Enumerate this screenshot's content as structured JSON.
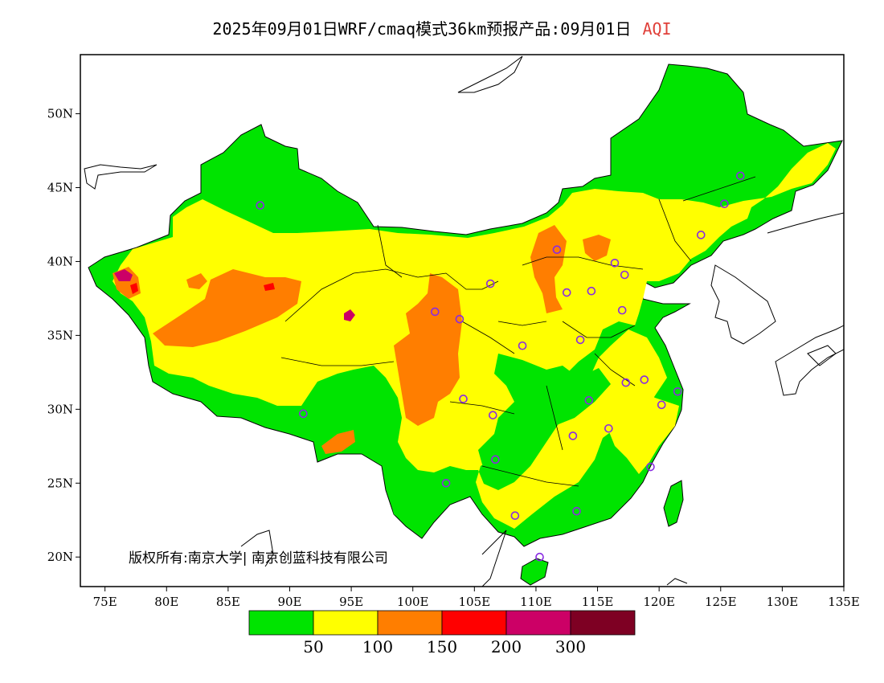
{
  "title": {
    "main": "2025年09月01日WRF/cmaq模式36km预报产品:09月01日",
    "pollutant": "AQI",
    "pollutant_color": "#e0403a"
  },
  "copyright": "版权所有:南京大学| 南京创蓝科技有限公司",
  "map": {
    "lon_range": [
      73,
      135
    ],
    "lat_range": [
      18,
      54
    ],
    "lat_ticks": [
      "20N",
      "25N",
      "30N",
      "35N",
      "40N",
      "45N",
      "50N"
    ],
    "lon_ticks": [
      "75E",
      "80E",
      "85E",
      "90E",
      "95E",
      "100E",
      "105E",
      "110E",
      "115E",
      "120E",
      "125E",
      "130E",
      "135E"
    ],
    "border_color": "#000000",
    "station_marker_color": "#8a2be2"
  },
  "legend": {
    "colors": [
      "#00e400",
      "#ffff00",
      "#ff7e00",
      "#ff0000",
      "#cc0066",
      "#7e0023"
    ],
    "labels": [
      "50",
      "100",
      "150",
      "200",
      "300"
    ]
  },
  "stations": [
    {
      "lon": 87.6,
      "lat": 43.8
    },
    {
      "lon": 126.6,
      "lat": 45.8
    },
    {
      "lon": 125.3,
      "lat": 43.9
    },
    {
      "lon": 123.4,
      "lat": 41.8
    },
    {
      "lon": 111.7,
      "lat": 40.8
    },
    {
      "lon": 116.4,
      "lat": 39.9
    },
    {
      "lon": 117.2,
      "lat": 39.1
    },
    {
      "lon": 114.5,
      "lat": 38.0
    },
    {
      "lon": 112.5,
      "lat": 37.9
    },
    {
      "lon": 106.3,
      "lat": 38.5
    },
    {
      "lon": 101.8,
      "lat": 36.6
    },
    {
      "lon": 103.8,
      "lat": 36.1
    },
    {
      "lon": 117.0,
      "lat": 36.7
    },
    {
      "lon": 113.6,
      "lat": 34.7
    },
    {
      "lon": 108.9,
      "lat": 34.3
    },
    {
      "lon": 117.3,
      "lat": 31.8
    },
    {
      "lon": 118.8,
      "lat": 32.0
    },
    {
      "lon": 121.5,
      "lat": 31.2
    },
    {
      "lon": 120.2,
      "lat": 30.3
    },
    {
      "lon": 114.3,
      "lat": 30.6
    },
    {
      "lon": 104.1,
      "lat": 30.7
    },
    {
      "lon": 106.5,
      "lat": 29.6
    },
    {
      "lon": 91.1,
      "lat": 29.7
    },
    {
      "lon": 113.0,
      "lat": 28.2
    },
    {
      "lon": 115.9,
      "lat": 28.7
    },
    {
      "lon": 106.7,
      "lat": 26.6
    },
    {
      "lon": 102.7,
      "lat": 25.0
    },
    {
      "lon": 119.3,
      "lat": 26.1
    },
    {
      "lon": 113.3,
      "lat": 23.1
    },
    {
      "lon": 108.3,
      "lat": 22.8
    },
    {
      "lon": 110.3,
      "lat": 20.0
    }
  ]
}
